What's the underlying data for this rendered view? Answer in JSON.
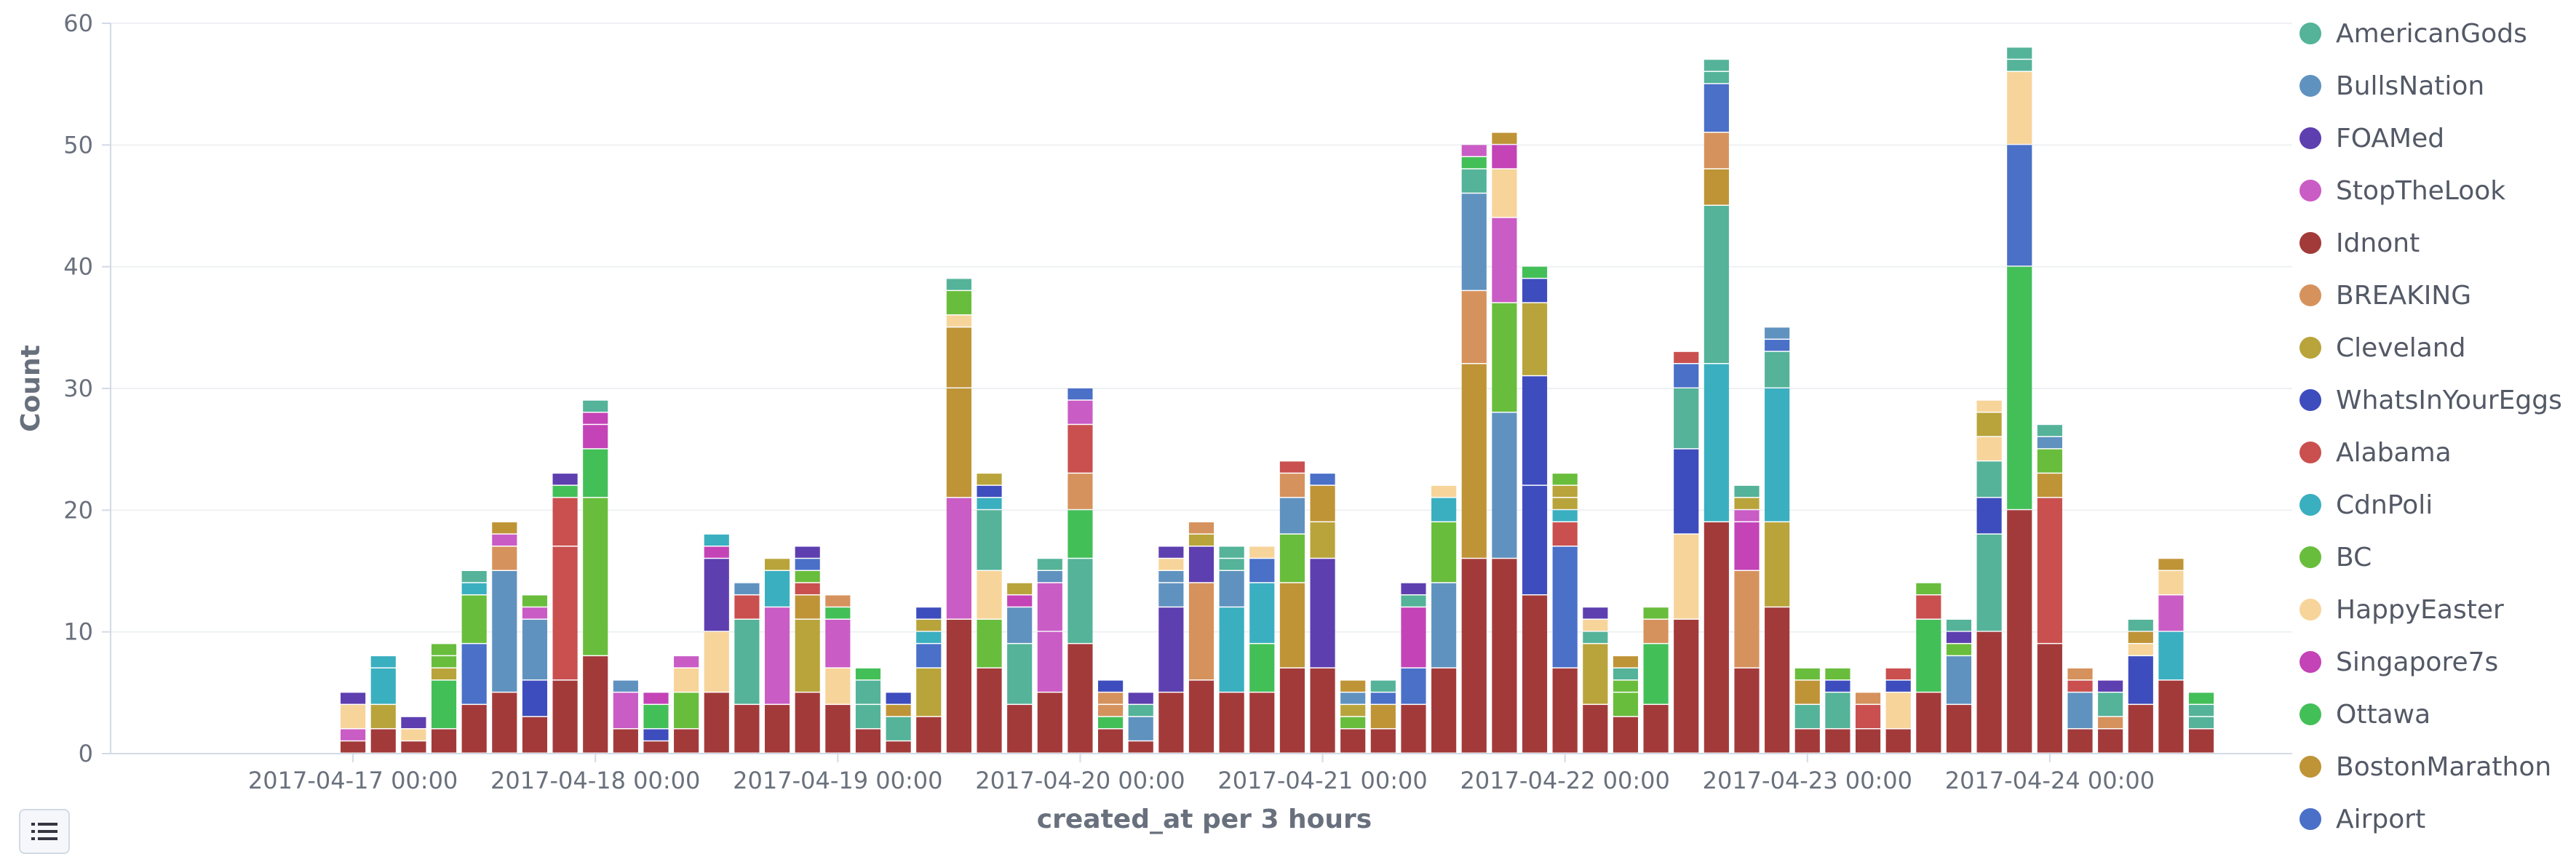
{
  "chart_data": {
    "type": "bar",
    "stacked": true,
    "xlabel": "created_at per 3 hours",
    "ylabel": "Count",
    "ylim": [
      0,
      60
    ],
    "yticks": [
      0,
      10,
      20,
      30,
      40,
      50,
      60
    ],
    "x_start": "2017-04-16 00:00",
    "x_end": "2017-04-25 00:00",
    "bin_hours": 3,
    "xticks": [
      "2017-04-17 00:00",
      "2017-04-18 00:00",
      "2017-04-19 00:00",
      "2017-04-20 00:00",
      "2017-04-21 00:00",
      "2017-04-22 00:00",
      "2017-04-23 00:00",
      "2017-04-24 00:00"
    ],
    "legend_position": "right",
    "series": [
      {
        "name": "AmericanGods",
        "color": "#54b399"
      },
      {
        "name": "BullsNation",
        "color": "#6092c0"
      },
      {
        "name": "FOAMed",
        "color": "#5e3fb0"
      },
      {
        "name": "StopTheLook",
        "color": "#ca5cc5"
      },
      {
        "name": "Idnont",
        "color": "#a33a3a"
      },
      {
        "name": "BREAKING",
        "color": "#d6925d"
      },
      {
        "name": "Cleveland",
        "color": "#b9a43b"
      },
      {
        "name": "WhatsInYourEggs",
        "color": "#3e4dbd"
      },
      {
        "name": "Alabama",
        "color": "#c9504f"
      },
      {
        "name": "CdnPoli",
        "color": "#3aafc0"
      },
      {
        "name": "BC",
        "color": "#69bd3c"
      },
      {
        "name": "HappyEaster",
        "color": "#f7d49a"
      },
      {
        "name": "Singapore7s",
        "color": "#c443b7"
      },
      {
        "name": "Ottawa",
        "color": "#43bf58"
      },
      {
        "name": "BostonMarathon",
        "color": "#bf9437"
      },
      {
        "name": "Airport",
        "color": "#4a70c8"
      }
    ],
    "bars": [
      {
        "x": "2017-04-17 00:00",
        "total": 5
      },
      {
        "x": "2017-04-17 03:00",
        "total": 8
      },
      {
        "x": "2017-04-17 06:00",
        "total": 3
      },
      {
        "x": "2017-04-17 09:00",
        "total": 9
      },
      {
        "x": "2017-04-17 12:00",
        "total": 15
      },
      {
        "x": "2017-04-17 15:00",
        "total": 19
      },
      {
        "x": "2017-04-17 18:00",
        "total": 13
      },
      {
        "x": "2017-04-17 21:00",
        "total": 23
      },
      {
        "x": "2017-04-18 00:00",
        "total": 29
      },
      {
        "x": "2017-04-18 03:00",
        "total": 6
      },
      {
        "x": "2017-04-18 06:00",
        "total": 5
      },
      {
        "x": "2017-04-18 09:00",
        "total": 8
      },
      {
        "x": "2017-04-18 12:00",
        "total": 18
      },
      {
        "x": "2017-04-18 15:00",
        "total": 14
      },
      {
        "x": "2017-04-18 18:00",
        "total": 16
      },
      {
        "x": "2017-04-18 21:00",
        "total": 17
      },
      {
        "x": "2017-04-19 00:00",
        "total": 13
      },
      {
        "x": "2017-04-19 03:00",
        "total": 7
      },
      {
        "x": "2017-04-19 06:00",
        "total": 5
      },
      {
        "x": "2017-04-19 09:00",
        "total": 12
      },
      {
        "x": "2017-04-19 12:00",
        "total": 39
      },
      {
        "x": "2017-04-19 15:00",
        "total": 23
      },
      {
        "x": "2017-04-19 18:00",
        "total": 14
      },
      {
        "x": "2017-04-19 21:00",
        "total": 16
      },
      {
        "x": "2017-04-20 00:00",
        "total": 30
      },
      {
        "x": "2017-04-20 03:00",
        "total": 6
      },
      {
        "x": "2017-04-20 06:00",
        "total": 5
      },
      {
        "x": "2017-04-20 09:00",
        "total": 17
      },
      {
        "x": "2017-04-20 12:00",
        "total": 19
      },
      {
        "x": "2017-04-20 15:00",
        "total": 17
      },
      {
        "x": "2017-04-20 18:00",
        "total": 17
      },
      {
        "x": "2017-04-20 21:00",
        "total": 24
      },
      {
        "x": "2017-04-21 00:00",
        "total": 23
      },
      {
        "x": "2017-04-21 03:00",
        "total": 6
      },
      {
        "x": "2017-04-21 06:00",
        "total": 6
      },
      {
        "x": "2017-04-21 09:00",
        "total": 14
      },
      {
        "x": "2017-04-21 12:00",
        "total": 22
      },
      {
        "x": "2017-04-21 15:00",
        "total": 50
      },
      {
        "x": "2017-04-21 18:00",
        "total": 51
      },
      {
        "x": "2017-04-21 21:00",
        "total": 40
      },
      {
        "x": "2017-04-22 00:00",
        "total": 23
      },
      {
        "x": "2017-04-22 03:00",
        "total": 12
      },
      {
        "x": "2017-04-22 06:00",
        "total": 8
      },
      {
        "x": "2017-04-22 09:00",
        "total": 12
      },
      {
        "x": "2017-04-22 12:00",
        "total": 33
      },
      {
        "x": "2017-04-22 15:00",
        "total": 57
      },
      {
        "x": "2017-04-22 18:00",
        "total": 22
      },
      {
        "x": "2017-04-22 21:00",
        "total": 35
      },
      {
        "x": "2017-04-23 00:00",
        "total": 7
      },
      {
        "x": "2017-04-23 03:00",
        "total": 7
      },
      {
        "x": "2017-04-23 06:00",
        "total": 5
      },
      {
        "x": "2017-04-23 09:00",
        "total": 7
      },
      {
        "x": "2017-04-23 12:00",
        "total": 14
      },
      {
        "x": "2017-04-23 15:00",
        "total": 11
      },
      {
        "x": "2017-04-23 18:00",
        "total": 29
      },
      {
        "x": "2017-04-23 21:00",
        "total": 58
      },
      {
        "x": "2017-04-24 00:00",
        "total": 27
      },
      {
        "x": "2017-04-24 03:00",
        "total": 7
      },
      {
        "x": "2017-04-24 06:00",
        "total": 6
      },
      {
        "x": "2017-04-24 09:00",
        "total": 11
      },
      {
        "x": "2017-04-24 12:00",
        "total": 16
      },
      {
        "x": "2017-04-24 15:00",
        "total": 5
      }
    ]
  }
}
